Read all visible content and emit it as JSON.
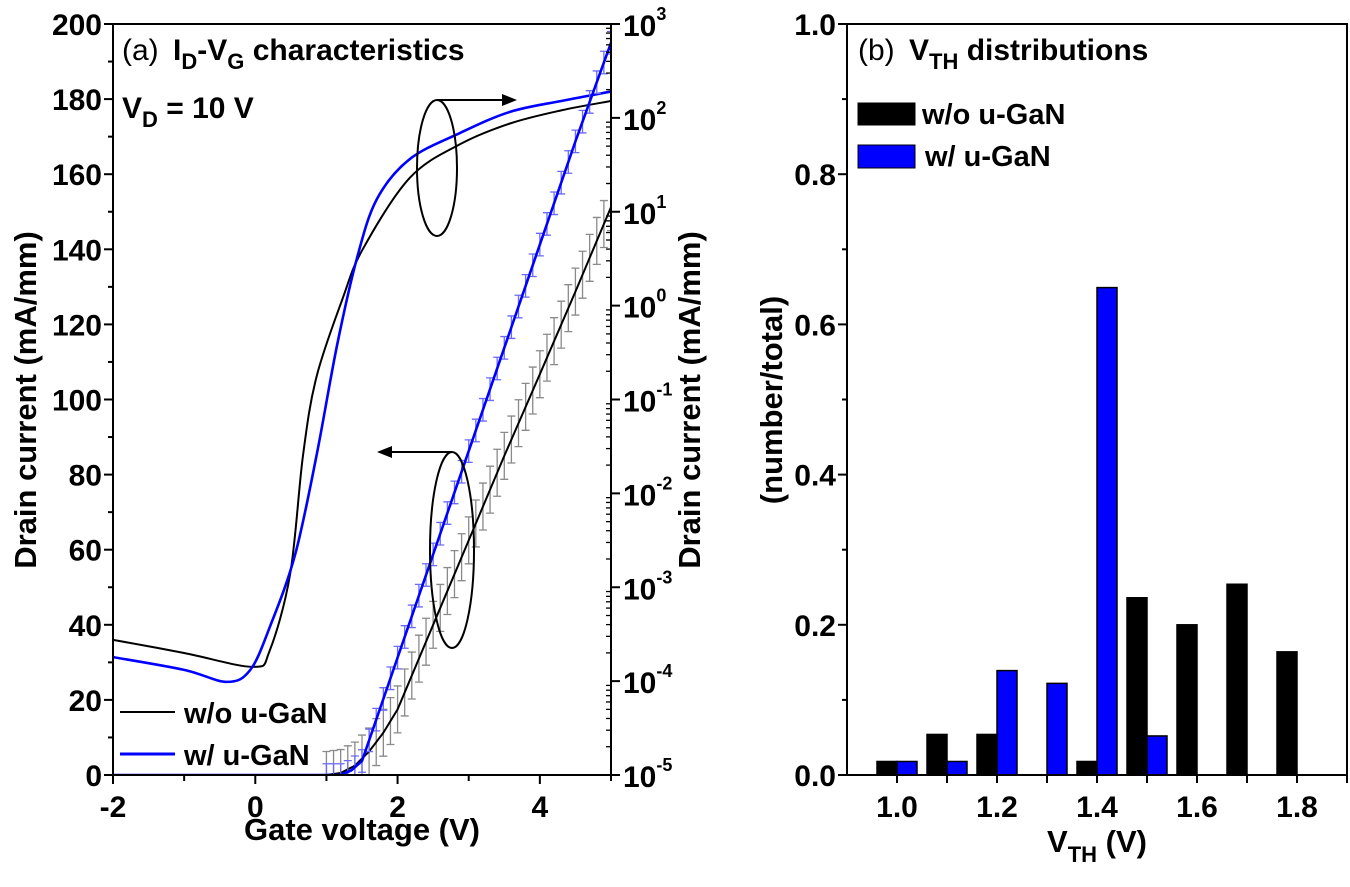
{
  "chart_data": [
    {
      "type": "line",
      "panel_label": "(a)",
      "title_parts": [
        "I",
        "D",
        "-V",
        "G",
        " characteristics"
      ],
      "condition_parts": [
        "V",
        "D",
        " = 10 V"
      ],
      "xlabel": "Gate voltage (V)",
      "ylabel_left": "Drain current (mA/mm)",
      "ylabel_right": "Drain current (mA/mm)",
      "xlim": [
        -2,
        5
      ],
      "ylim_left": [
        0,
        200
      ],
      "ylim_right": [
        1e-05,
        1000
      ],
      "yscale_right": "log",
      "x_ticks": [
        "-2",
        "0",
        "2",
        "4"
      ],
      "x_tick_values": [
        -2,
        0,
        2,
        4
      ],
      "y_left_ticks": [
        "0",
        "20",
        "40",
        "60",
        "80",
        "100",
        "120",
        "140",
        "160",
        "180",
        "200"
      ],
      "y_right_ticks": [
        {
          "base": "10",
          "exp": "-5"
        },
        {
          "base": "10",
          "exp": "-4"
        },
        {
          "base": "10",
          "exp": "-3"
        },
        {
          "base": "10",
          "exp": "-2"
        },
        {
          "base": "10",
          "exp": "-1"
        },
        {
          "base": "10",
          "exp": "0"
        },
        {
          "base": "10",
          "exp": "1"
        },
        {
          "base": "10",
          "exp": "2"
        },
        {
          "base": "10",
          "exp": "3"
        }
      ],
      "legend": [
        {
          "label": "w/o u-GaN",
          "color": "#000000"
        },
        {
          "label": "w/ u-GaN",
          "color": "#0000ff"
        }
      ],
      "legend_position": "bottom-left",
      "series": [
        {
          "name": "w/o u-GaN",
          "axis": "left",
          "color": "#000000",
          "x": [
            -2,
            -1,
            -0.03,
            0.2,
            0.49,
            0.67,
            0.86,
            1.23,
            1.51,
            2.17,
            2.88,
            3.58,
            4.3,
            5
          ],
          "y": [
            36,
            32.5,
            28.8,
            33,
            53.5,
            85,
            106,
            127,
            140,
            159,
            168,
            173.5,
            177,
            179.5
          ]
        },
        {
          "name": "w/ u-GaN",
          "axis": "left",
          "color": "#0000ff",
          "x": [
            -2,
            -1,
            -0.4,
            -0.07,
            0.21,
            0.56,
            0.86,
            1.15,
            1.43,
            1.71,
            2.17,
            2.88,
            3.58,
            4.3,
            5
          ],
          "y": [
            31.4,
            28,
            24.8,
            28,
            39.7,
            58.7,
            85,
            114.5,
            137.7,
            153.4,
            164,
            171,
            176.6,
            179.5,
            182
          ]
        },
        {
          "name": "w/o u-GaN (log)",
          "axis": "right",
          "color": "#000000",
          "errbar_color": "#8a8a8a",
          "error_decades": 0.25,
          "x": [
            -2,
            1.0,
            1.2,
            1.4,
            1.6,
            1.8,
            2.0,
            2.5,
            3.0,
            3.5,
            4.0,
            4.5,
            5.0
          ],
          "y": [
            1e-05,
            1e-05,
            1.05e-05,
            1.26e-05,
            1.78e-05,
            2.82e-05,
            5e-05,
            0.000398,
            0.00316,
            0.0251,
            0.186,
            1.41,
            11.2
          ]
        },
        {
          "name": "w/ u-GaN (log)",
          "axis": "right",
          "color": "#0000ff",
          "errbar_color": "#6a6aff",
          "error_decades": 0.12,
          "x": [
            -2,
            1.0,
            1.2,
            1.35,
            1.5,
            2.0,
            2.5,
            3.0,
            3.5,
            4.0,
            4.5,
            5.0
          ],
          "y": [
            1e-05,
            1e-05,
            1e-05,
            1.12e-05,
            1.41e-05,
            0.000178,
            0.00224,
            0.0282,
            0.355,
            4.47,
            56.2,
            631
          ]
        }
      ]
    },
    {
      "type": "bar",
      "panel_label": "(b)",
      "title_parts": [
        "V",
        "TH",
        " distributions"
      ],
      "xlabel_parts": [
        "V",
        "TH",
        " (V)"
      ],
      "ylabel": "(number/total)",
      "xlim": [
        0.9,
        1.9
      ],
      "ylim": [
        0,
        1.0
      ],
      "x_ticks": [
        "1.0",
        "1.2",
        "1.4",
        "1.6",
        "1.8"
      ],
      "x_tick_values": [
        1.0,
        1.2,
        1.4,
        1.6,
        1.8
      ],
      "y_ticks": [
        "0.0",
        "0.2",
        "0.4",
        "0.6",
        "0.8",
        "1.0"
      ],
      "legend_position": "top-left",
      "categories": [
        1.0,
        1.1,
        1.2,
        1.3,
        1.4,
        1.5,
        1.6,
        1.7,
        1.8
      ],
      "series": [
        {
          "name": "w/o u-GaN",
          "color": "#000000",
          "values": [
            0.018,
            0.054,
            0.054,
            0,
            0.018,
            0.236,
            0.2,
            0.254,
            0.164
          ]
        },
        {
          "name": "w/ u-GaN",
          "color": "#0000ff",
          "values": [
            0.018,
            0.018,
            0.139,
            0.122,
            0.649,
            0.052,
            0,
            0,
            0
          ]
        }
      ]
    }
  ]
}
